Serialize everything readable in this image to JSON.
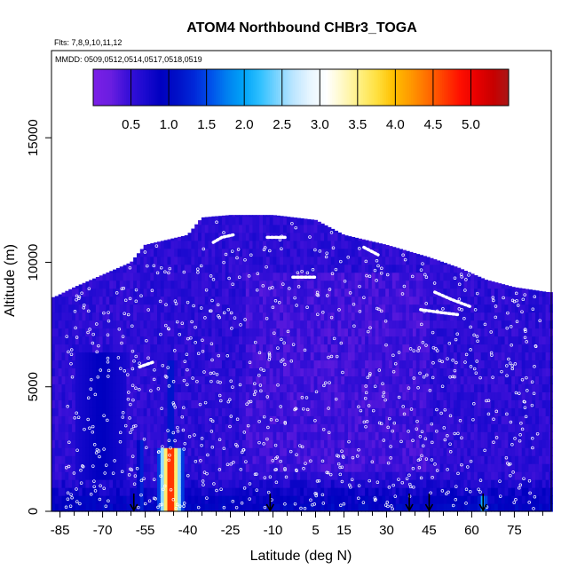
{
  "chart_data": {
    "type": "heatmap",
    "title": "ATOM4 Northbound CHBr3_TOGA",
    "flights_label": "Flts: 7,8,9,10,11,12",
    "mmdd_label": "MMDD: 0509,0512,0514,0517,0518,0519",
    "xlabel": "Latitude (deg N)",
    "ylabel": "Altitude (m)",
    "xlim": [
      -88,
      88
    ],
    "ylim": [
      0,
      18500
    ],
    "x_ticks": [
      -85,
      -70,
      -55,
      -40,
      -25,
      -10,
      5,
      15,
      30,
      45,
      60,
      75
    ],
    "x_minor_ticks": [
      -80,
      -75,
      -65,
      -60,
      -50,
      -45,
      -35,
      -30,
      -20,
      -15,
      -5,
      0,
      10,
      20,
      25,
      35,
      40,
      50,
      55,
      65,
      70,
      80,
      85
    ],
    "y_ticks": [
      0,
      5000,
      10000,
      15000
    ],
    "colorbar": {
      "min": 0.0,
      "max": 5.5,
      "tick_labels": [
        "0.5",
        "1.0",
        "1.5",
        "2.0",
        "2.5",
        "3.0",
        "3.5",
        "4.0",
        "4.5",
        "5.0"
      ],
      "tick_values": [
        0.5,
        1.0,
        1.5,
        2.0,
        2.5,
        3.0,
        3.5,
        4.0,
        4.5,
        5.0
      ],
      "palette": [
        "#7a1fe6",
        "#6a1ee0",
        "#3a10d8",
        "#1d0ad0",
        "#0000c0",
        "#0010c8",
        "#0028d8",
        "#0050ea",
        "#0080f0",
        "#00a4f8",
        "#30c0ff",
        "#7ad4ff",
        "#bde6ff",
        "#e8f6ff",
        "#ffffff",
        "#fff8c0",
        "#fff080",
        "#ffe040",
        "#ffc000",
        "#ff9a00",
        "#ff7000",
        "#ff4000",
        "#ff1000",
        "#e80000",
        "#c80000",
        "#a81818"
      ]
    },
    "envelope_top": [
      {
        "lat": -87,
        "alt": 8600
      },
      {
        "lat": -80,
        "alt": 9000
      },
      {
        "lat": -70,
        "alt": 9500
      },
      {
        "lat": -60,
        "alt": 10000
      },
      {
        "lat": -55,
        "alt": 10700
      },
      {
        "lat": -40,
        "alt": 11100
      },
      {
        "lat": -35,
        "alt": 11800
      },
      {
        "lat": -25,
        "alt": 11900
      },
      {
        "lat": -10,
        "alt": 11900
      },
      {
        "lat": 5,
        "alt": 11700
      },
      {
        "lat": 15,
        "alt": 11100
      },
      {
        "lat": 30,
        "alt": 10700
      },
      {
        "lat": 45,
        "alt": 10200
      },
      {
        "lat": 55,
        "alt": 9800
      },
      {
        "lat": 65,
        "alt": 9300
      },
      {
        "lat": 75,
        "alt": 9000
      },
      {
        "lat": 87,
        "alt": 8800
      }
    ],
    "plumes": [
      {
        "lat_from": -51,
        "lat_to": -41,
        "alt_from": 0,
        "alt_to": 2400,
        "peak_value": 5.2
      },
      {
        "lat_from": -47,
        "lat_to": -45,
        "alt_from": 2400,
        "alt_to": 6000,
        "peak_value": 1.8
      },
      {
        "lat_from": -58,
        "lat_to": -55,
        "alt_from": 0,
        "alt_to": 3000,
        "peak_value": 1.4
      },
      {
        "lat_from": -79,
        "lat_to": -62,
        "alt_from": 1200,
        "alt_to": 6500,
        "peak_value": 0.9
      },
      {
        "lat_from": 62,
        "lat_to": 66,
        "alt_from": 0,
        "alt_to": 600,
        "peak_value": 2.2
      }
    ],
    "flight_tracks": [
      [
        {
          "lat": -57,
          "alt": 5800
        },
        {
          "lat": -52,
          "alt": 6000
        }
      ],
      [
        {
          "lat": -31,
          "alt": 10800
        },
        {
          "lat": -28,
          "alt": 11000
        },
        {
          "lat": -24,
          "alt": 11100
        }
      ],
      [
        {
          "lat": -12,
          "alt": 11000
        },
        {
          "lat": -5,
          "alt": 11000
        }
      ],
      [
        {
          "lat": -3,
          "alt": 9400
        },
        {
          "lat": 5,
          "alt": 9400
        }
      ],
      [
        {
          "lat": 22,
          "alt": 10600
        },
        {
          "lat": 27,
          "alt": 10300
        }
      ],
      [
        {
          "lat": 47,
          "alt": 8800
        },
        {
          "lat": 53,
          "alt": 8500
        },
        {
          "lat": 60,
          "alt": 8200
        }
      ],
      [
        {
          "lat": 42,
          "alt": 8100
        },
        {
          "lat": 48,
          "alt": 8000
        },
        {
          "lat": 55,
          "alt": 7900
        }
      ]
    ],
    "markers": [
      -59,
      -11,
      38,
      45,
      64
    ],
    "sample_seed": 11
  }
}
